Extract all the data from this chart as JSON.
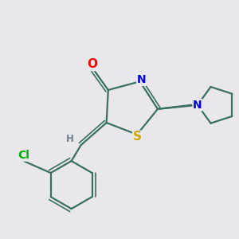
{
  "background_color": "#e8e8ec",
  "bond_color": "#3a7060",
  "title": "",
  "atom_colors": {
    "O": "#ff0000",
    "S": "#ccaa00",
    "N": "#0000dd",
    "Cl": "#00aa00",
    "C": "#3a7060",
    "H": "#708090"
  },
  "figsize": [
    3.0,
    3.0
  ],
  "dpi": 100,
  "lw": 1.6,
  "lw2": 1.2
}
